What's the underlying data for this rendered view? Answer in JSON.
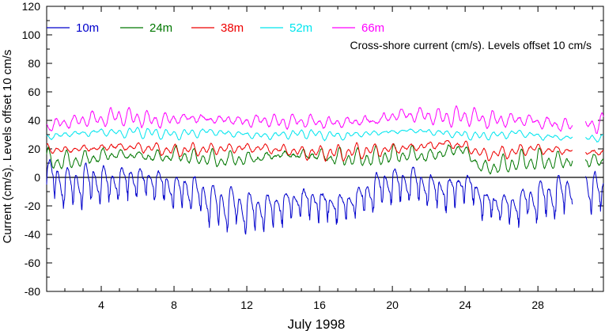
{
  "chart_data": {
    "type": "line",
    "xlabel": "July 1998",
    "ylabel": "Current (cm/s). Levels offset 10 cm/s",
    "annotation": "Cross-shore current (cm/s). Levels offset 10 cm/s",
    "xlim": [
      1,
      31.6
    ],
    "ylim": [
      -80,
      120
    ],
    "x_ticks": [
      4,
      8,
      12,
      16,
      20,
      24,
      28
    ],
    "y_ticks": [
      -80,
      -60,
      -40,
      -20,
      0,
      20,
      40,
      60,
      80,
      100,
      120
    ],
    "zero_line": 0,
    "legend_position": "top",
    "series": [
      {
        "name": "10m",
        "color": "#0000cc",
        "offset": 0,
        "amp": 10,
        "dip_amp": 12,
        "keyframes": [
          [
            1.0,
            0
          ],
          [
            1.2,
            4
          ],
          [
            1.5,
            2
          ],
          [
            1.8,
            -2
          ],
          [
            2.3,
            -3
          ],
          [
            3.0,
            -1
          ],
          [
            3.6,
            0
          ],
          [
            4.3,
            -2
          ],
          [
            5.0,
            -1
          ],
          [
            5.8,
            1
          ],
          [
            6.5,
            0
          ],
          [
            7.3,
            -3
          ],
          [
            8.0,
            -5
          ],
          [
            9.0,
            -8
          ],
          [
            10.0,
            -14
          ],
          [
            11.0,
            -18
          ],
          [
            12.0,
            -20
          ],
          [
            13.0,
            -20
          ],
          [
            14.0,
            -17
          ],
          [
            15.0,
            -14
          ],
          [
            16.0,
            -15
          ],
          [
            17.0,
            -17
          ],
          [
            18.0,
            -14
          ],
          [
            19.0,
            -6
          ],
          [
            19.8,
            -2
          ],
          [
            20.5,
            -2
          ],
          [
            21.0,
            0
          ],
          [
            22.0,
            -5
          ],
          [
            23.0,
            -8
          ],
          [
            24.0,
            -2
          ],
          [
            24.5,
            -6
          ],
          [
            25.0,
            -14
          ],
          [
            26.0,
            -19
          ],
          [
            27.0,
            -16
          ],
          [
            28.0,
            -12
          ],
          [
            29.0,
            -10
          ],
          [
            29.9,
            -6
          ],
          [
            30.0,
            null
          ],
          [
            30.5,
            null
          ],
          [
            30.6,
            -4
          ],
          [
            31.6,
            -8
          ]
        ]
      },
      {
        "name": "24m",
        "color": "#007700",
        "offset": 10,
        "amp": 7,
        "dip_amp": 0,
        "keyframes": [
          [
            1.0,
            2
          ],
          [
            2.0,
            1
          ],
          [
            3.0,
            3
          ],
          [
            4.0,
            5
          ],
          [
            5.0,
            6
          ],
          [
            6.0,
            5
          ],
          [
            7.0,
            4
          ],
          [
            8.0,
            6
          ],
          [
            9.0,
            4
          ],
          [
            10.0,
            3
          ],
          [
            11.0,
            2
          ],
          [
            12.0,
            3
          ],
          [
            13.0,
            4
          ],
          [
            14.0,
            6
          ],
          [
            15.0,
            6
          ],
          [
            16.0,
            5
          ],
          [
            17.0,
            4
          ],
          [
            18.0,
            3
          ],
          [
            19.0,
            4
          ],
          [
            20.0,
            6
          ],
          [
            21.0,
            6
          ],
          [
            22.0,
            5
          ],
          [
            23.0,
            8
          ],
          [
            23.8,
            11
          ],
          [
            24.3,
            4
          ],
          [
            25.0,
            -4
          ],
          [
            26.0,
            -2
          ],
          [
            27.0,
            1
          ],
          [
            28.0,
            2
          ],
          [
            29.0,
            1
          ],
          [
            29.9,
            2
          ],
          [
            30.0,
            null
          ],
          [
            30.5,
            null
          ],
          [
            30.6,
            1
          ],
          [
            31.6,
            1
          ]
        ]
      },
      {
        "name": "38m",
        "color": "#ee0000",
        "offset": 20,
        "amp": 5,
        "dip_amp": 0,
        "keyframes": [
          [
            1.0,
            0
          ],
          [
            2.0,
            -1
          ],
          [
            3.0,
            0
          ],
          [
            4.0,
            1
          ],
          [
            5.0,
            2
          ],
          [
            6.0,
            1
          ],
          [
            7.0,
            0
          ],
          [
            8.0,
            -2
          ],
          [
            9.0,
            -1
          ],
          [
            10.0,
            0
          ],
          [
            11.0,
            0
          ],
          [
            12.0,
            1
          ],
          [
            13.0,
            0
          ],
          [
            14.0,
            -1
          ],
          [
            15.0,
            -2
          ],
          [
            16.0,
            -3
          ],
          [
            17.0,
            -3
          ],
          [
            18.0,
            -2
          ],
          [
            19.0,
            -1
          ],
          [
            20.0,
            0
          ],
          [
            21.0,
            1
          ],
          [
            22.0,
            2
          ],
          [
            23.0,
            4
          ],
          [
            24.0,
            2
          ],
          [
            25.0,
            -4
          ],
          [
            26.0,
            -3
          ],
          [
            27.0,
            -1
          ],
          [
            28.0,
            0
          ],
          [
            29.0,
            -1
          ],
          [
            29.9,
            -1
          ],
          [
            30.0,
            null
          ],
          [
            30.5,
            null
          ],
          [
            30.6,
            -3
          ],
          [
            31.6,
            -2
          ]
        ]
      },
      {
        "name": "52m",
        "color": "#00e5ee",
        "offset": 30,
        "amp": 3.5,
        "dip_amp": 0,
        "keyframes": [
          [
            1.0,
            -2
          ],
          [
            2.0,
            0
          ],
          [
            3.0,
            1
          ],
          [
            4.0,
            2
          ],
          [
            5.0,
            1
          ],
          [
            6.0,
            2
          ],
          [
            7.0,
            1
          ],
          [
            8.0,
            0
          ],
          [
            9.0,
            1
          ],
          [
            10.0,
            2
          ],
          [
            11.0,
            1
          ],
          [
            12.0,
            0
          ],
          [
            13.0,
            -1
          ],
          [
            14.0,
            0
          ],
          [
            15.0,
            1
          ],
          [
            16.0,
            0
          ],
          [
            17.0,
            -1
          ],
          [
            18.0,
            0
          ],
          [
            19.0,
            1
          ],
          [
            20.0,
            2
          ],
          [
            21.0,
            3
          ],
          [
            22.0,
            2
          ],
          [
            23.0,
            1
          ],
          [
            24.0,
            0
          ],
          [
            25.0,
            -1
          ],
          [
            26.0,
            0
          ],
          [
            27.0,
            1
          ],
          [
            28.0,
            -1
          ],
          [
            29.0,
            -2
          ],
          [
            29.9,
            -2
          ],
          [
            30.0,
            null
          ],
          [
            30.5,
            null
          ],
          [
            30.6,
            -3
          ],
          [
            31.6,
            -2
          ]
        ]
      },
      {
        "name": "66m",
        "color": "#ff00ff",
        "offset": 40,
        "amp": 6.5,
        "dip_amp": 0,
        "keyframes": [
          [
            1.0,
            -4
          ],
          [
            2.0,
            -2
          ],
          [
            3.0,
            0
          ],
          [
            4.0,
            1
          ],
          [
            5.0,
            3
          ],
          [
            6.0,
            2
          ],
          [
            7.0,
            0
          ],
          [
            8.0,
            1
          ],
          [
            9.0,
            2
          ],
          [
            10.0,
            1
          ],
          [
            11.0,
            0
          ],
          [
            12.0,
            -1
          ],
          [
            13.0,
            0
          ],
          [
            14.0,
            -1
          ],
          [
            15.0,
            0
          ],
          [
            16.0,
            -1
          ],
          [
            17.0,
            -2
          ],
          [
            18.0,
            -1
          ],
          [
            19.0,
            0
          ],
          [
            20.0,
            3
          ],
          [
            21.0,
            4
          ],
          [
            22.0,
            3
          ],
          [
            23.0,
            2
          ],
          [
            24.0,
            3
          ],
          [
            25.0,
            1
          ],
          [
            26.0,
            0
          ],
          [
            27.0,
            1
          ],
          [
            28.0,
            -1
          ],
          [
            29.0,
            -3
          ],
          [
            29.9,
            -4
          ],
          [
            30.0,
            null
          ],
          [
            30.5,
            null
          ],
          [
            30.6,
            -3
          ],
          [
            31.6,
            -2
          ]
        ]
      }
    ]
  }
}
